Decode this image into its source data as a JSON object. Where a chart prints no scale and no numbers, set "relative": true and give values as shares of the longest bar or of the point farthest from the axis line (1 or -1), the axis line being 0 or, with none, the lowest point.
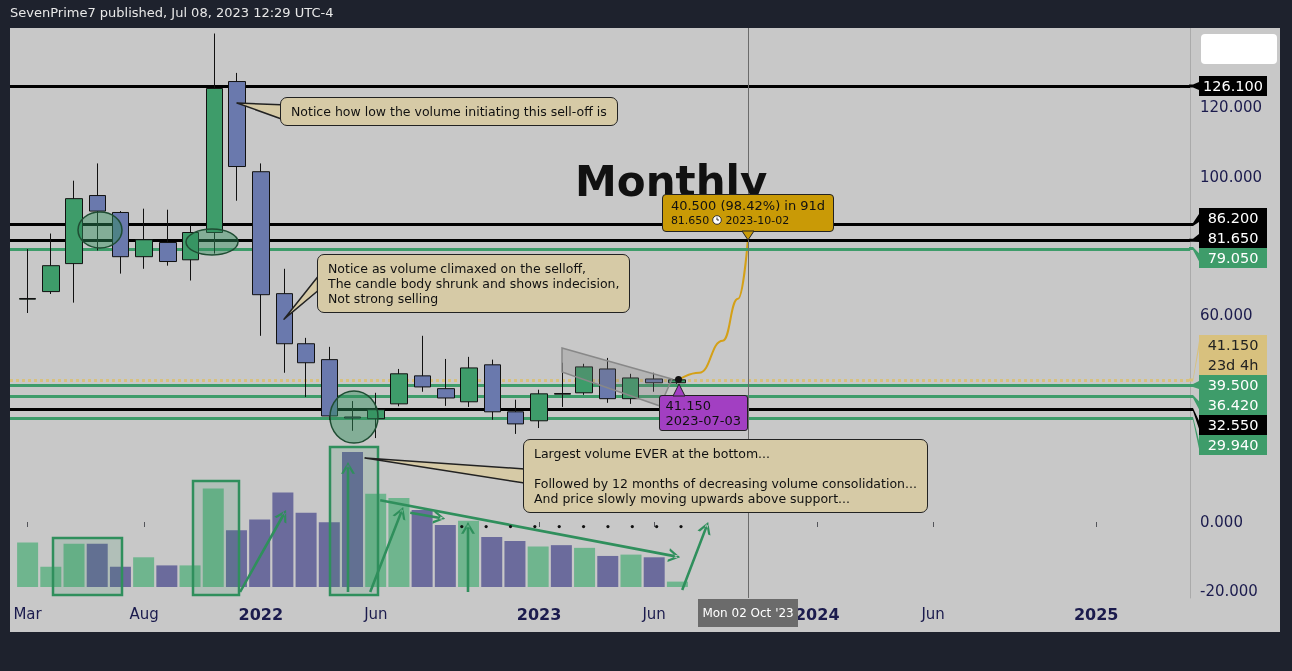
{
  "chart_data": [
    {
      "type": "candlestick",
      "title": "Monthly",
      "x": [
        "2021-03",
        "2021-04",
        "2021-05",
        "2021-06",
        "2021-07",
        "2021-08",
        "2021-09",
        "2021-10",
        "2021-11",
        "2021-12",
        "2022-01",
        "2022-02",
        "2022-03",
        "2022-04",
        "2022-05",
        "2022-06",
        "2022-07",
        "2022-08",
        "2022-09",
        "2022-10",
        "2022-11",
        "2022-12",
        "2023-01",
        "2023-02",
        "2023-03",
        "2023-04",
        "2023-05",
        "2023-06",
        "2023-07"
      ],
      "ohlc": [
        [
          64.5,
          79,
          60.5,
          64.7
        ],
        [
          66.7,
          83.5,
          66,
          74.2
        ],
        [
          74.8,
          98.8,
          63.5,
          93.6
        ],
        [
          94.5,
          103.8,
          78.6,
          90
        ],
        [
          89.6,
          90,
          71.9,
          76.8
        ],
        [
          76.8,
          90.7,
          73.3,
          81.7
        ],
        [
          80.9,
          90.4,
          74.2,
          75.4
        ],
        [
          75.9,
          85.8,
          69.9,
          83.8
        ],
        [
          83.8,
          141.4,
          77.7,
          125.5
        ],
        [
          127.5,
          130,
          93,
          102.9
        ],
        [
          101.4,
          103.8,
          53.9,
          65.8
        ],
        [
          66.1,
          73.3,
          43.2,
          51.6
        ],
        [
          51.6,
          53.3,
          36.2,
          46.1
        ],
        [
          47,
          50.7,
          29.5,
          30.7
        ],
        [
          30.4,
          35,
          26.4,
          30.1
        ],
        [
          29.9,
          37.4,
          24.3,
          32.5
        ],
        [
          34.2,
          44.3,
          33.5,
          42.9
        ],
        [
          42.3,
          53.9,
          37.7,
          39.1
        ],
        [
          38.6,
          47.2,
          33.6,
          35.9
        ],
        [
          34.8,
          47.8,
          33.3,
          44.6
        ],
        [
          45.5,
          47,
          29.6,
          31.9
        ],
        [
          31.9,
          35.4,
          25.5,
          28.4
        ],
        [
          29.3,
          38.3,
          27.2,
          37.1
        ],
        [
          37,
          46.1,
          33.3,
          37.2
        ],
        [
          37.4,
          45.8,
          36.8,
          44.9
        ],
        [
          44.3,
          47.5,
          34.5,
          35.7
        ],
        [
          35.7,
          42.9,
          34.2,
          41.7
        ],
        [
          41.4,
          43.2,
          37.7,
          40.3
        ],
        [
          40.3,
          41.5,
          40,
          41.15
        ]
      ],
      "colors": [
        "#3e9c6a",
        "#3e9c6a",
        "#3e9c6a",
        "#6a79ad",
        "#6a79ad",
        "#3e9c6a",
        "#6a79ad",
        "#3e9c6a",
        "#3e9c6a",
        "#6a79ad",
        "#6a79ad",
        "#6a79ad",
        "#6a79ad",
        "#6a79ad",
        "#6a79ad",
        "#3e9c6a",
        "#3e9c6a",
        "#6a79ad",
        "#6a79ad",
        "#3e9c6a",
        "#6a79ad",
        "#6a79ad",
        "#3e9c6a",
        "#3e9c6a",
        "#3e9c6a",
        "#6a79ad",
        "#3e9c6a",
        "#6a79ad",
        "#3e9c6a"
      ],
      "series": [
        {
          "type": "line",
          "color": "#d4a017",
          "x": [
            "2023-07-03",
            "2023-07-30",
            "2023-08-30",
            "2023-09-19",
            "2023-10-02"
          ],
          "values": [
            41.15,
            43.2,
            52.5,
            64.6,
            81.65
          ]
        }
      ],
      "marker": "none",
      "xlim": [
        "2021-02-06",
        "2025-05-04"
      ],
      "xticks": [
        {
          "value": "2021-03",
          "label": "Mar"
        },
        {
          "value": "2021-08",
          "label": "Aug"
        },
        {
          "value": "2022-01",
          "label": "2022"
        },
        {
          "value": "2022-06",
          "label": "Jun"
        },
        {
          "value": "2023-01",
          "label": "2023"
        },
        {
          "value": "2023-06",
          "label": "Jun"
        },
        {
          "value": "2024-01",
          "label": "2024"
        },
        {
          "value": "2024-06",
          "label": "Jun"
        },
        {
          "value": "2025-01",
          "label": "2025"
        }
      ],
      "ylim": [
        -22,
        143
      ],
      "yticks": [
        {
          "value": -20,
          "label": "-20.000"
        },
        {
          "value": 0,
          "label": "0.000"
        },
        {
          "value": 60,
          "label": "60.000"
        },
        {
          "value": 100,
          "label": "100.000"
        },
        {
          "value": 120,
          "label": "120.000"
        }
      ],
      "ref_lines": [
        {
          "axis": "y",
          "value": 126.1,
          "label": "126.100",
          "color": "#000000",
          "line_style": "solid"
        },
        {
          "axis": "y",
          "value": 86.2,
          "label": "86.200",
          "color": "#000000",
          "line_style": "solid"
        },
        {
          "axis": "y",
          "value": 81.65,
          "label": "81.650",
          "color": "#000000",
          "line_style": "solid"
        },
        {
          "axis": "y",
          "value": 79.05,
          "label": "79.050",
          "color": "#3e9c6a",
          "line_style": "solid"
        },
        {
          "axis": "y",
          "value": 41.15,
          "label": "41.150",
          "color": "#d8c17e",
          "line_style": "dotted"
        },
        {
          "axis": "y",
          "value": 39.5,
          "label": "39.500",
          "color": "#3e9c6a",
          "line_style": "solid"
        },
        {
          "axis": "y",
          "value": 36.42,
          "label": "36.420",
          "color": "#3e9c6a",
          "line_style": "solid"
        },
        {
          "axis": "y",
          "value": 32.55,
          "label": "32.550",
          "color": "#000000",
          "line_style": "solid"
        },
        {
          "axis": "y",
          "value": 29.94,
          "label": "29.940",
          "color": "#3e9c6a",
          "line_style": "solid"
        },
        {
          "axis": "x",
          "value": "2023-10-02",
          "label": "Mon 02 Oct '23",
          "color": "#6b6b6b",
          "line_style": "solid"
        }
      ],
      "annotations": [
        "SevenPrime7 published, Jul 08, 2023 12:29 UTC-4",
        "Notice how low the volume initiating this sell-off is",
        "Notice as volume climaxed on the selloff,\nThe candle body shrunk and shows indecision,\nNot strong selling",
        {
          "text": "40.500 (98.42%) in 91d",
          "x": "2023-10-02",
          "y": 81.65
        },
        "81.650",
        "2023-10-02",
        {
          "text": "41.150\n2023-07-03",
          "x": "2023-07-03",
          "y": 41.15
        },
        "23d 4h"
      ]
    },
    {
      "type": "bar",
      "relative": true,
      "categories": [
        null,
        null,
        null,
        null,
        null,
        null,
        null,
        null,
        null,
        null,
        null,
        null,
        null,
        null,
        null,
        null,
        null,
        null,
        null,
        null,
        null,
        null,
        null,
        null,
        null,
        null,
        null,
        null,
        null
      ],
      "values": [
        0.33,
        0.15,
        0.32,
        0.32,
        0.15,
        0.22,
        0.16,
        0.16,
        0.73,
        0.42,
        0.5,
        0.7,
        0.55,
        0.48,
        1,
        0.69,
        0.66,
        0.57,
        0.46,
        0.49,
        0.37,
        0.34,
        0.3,
        0.31,
        0.29,
        0.23,
        0.24,
        0.22,
        0.04
      ],
      "colors": [
        "#6fb58e",
        "#6fb58e",
        "#6fb58e",
        "#6b6b9c",
        "#6b6b9c",
        "#6fb58e",
        "#6b6b9c",
        "#6fb58e",
        "#6fb58e",
        "#6b6b9c",
        "#6b6b9c",
        "#6b6b9c",
        "#6b6b9c",
        "#6b6b9c",
        "#6b6b9c",
        "#6fb58e",
        "#6fb58e",
        "#6b6b9c",
        "#6b6b9c",
        "#6fb58e",
        "#6b6b9c",
        "#6b6b9c",
        "#6fb58e",
        "#6b6b9c",
        "#6fb58e",
        "#6b6b9c",
        "#6fb58e",
        "#6b6b9c",
        "#6fb58e"
      ],
      "annotations": [
        "Largest volume EVER at the bottom...\n\nFollowed by 12 months of decreasing volume consolidation...\nAnd price slowly moving upwards above support..."
      ]
    }
  ]
}
